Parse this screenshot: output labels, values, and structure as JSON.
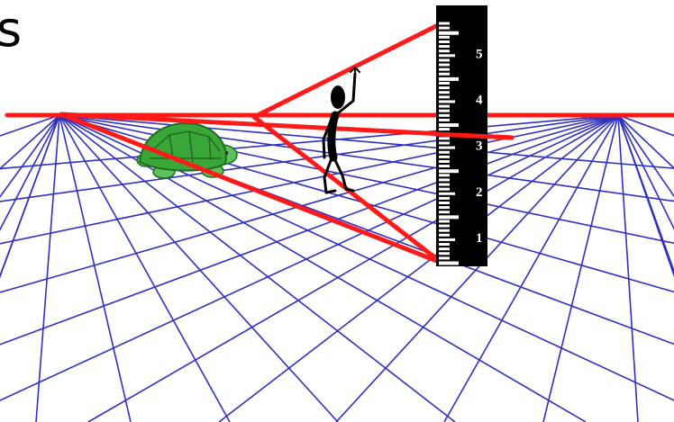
{
  "slide": {
    "title_fragment": "s"
  },
  "ruler": {
    "labels": [
      "5",
      "4",
      "3",
      "2",
      "1"
    ]
  },
  "colors": {
    "grid": "#3030c0",
    "construction": "#ff1a1a",
    "ruler": "#000000",
    "ruler_marks": "#ffffff",
    "turtle_shell": "#3aa63a",
    "turtle_body": "#5cc25c",
    "figure": "#000000"
  },
  "icons": {
    "turtle": "turtle-icon",
    "person": "stick-figure-icon"
  }
}
